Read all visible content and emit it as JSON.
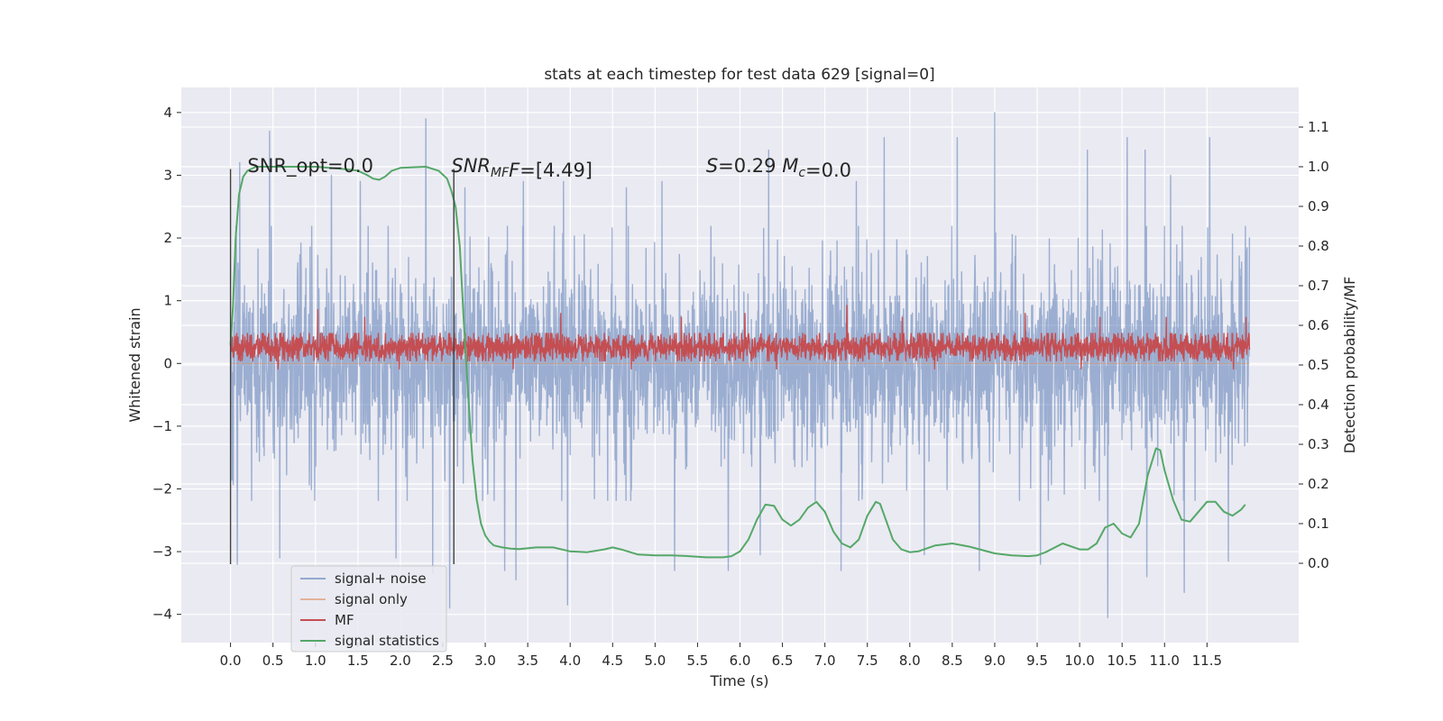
{
  "chart_data": {
    "type": "line",
    "title": "stats at each timestep for test data 629 [signal=0]",
    "xlabel": "Time (s)",
    "ylabel_left": "Whitened strain",
    "ylabel_right": "Detection probability/MF",
    "xlim": [
      -0.58,
      12.58
    ],
    "ylim_left": [
      -4.45,
      4.4
    ],
    "ylim_right": [
      -0.2,
      1.2
    ],
    "x_ticks": [
      0.0,
      0.5,
      1.0,
      1.5,
      2.0,
      2.5,
      3.0,
      3.5,
      4.0,
      4.5,
      5.0,
      5.5,
      6.0,
      6.5,
      7.0,
      7.5,
      8.0,
      8.5,
      9.0,
      9.5,
      10.0,
      10.5,
      11.0,
      11.5
    ],
    "x_tick_labels": [
      "0.0",
      "0.5",
      "1.0",
      "1.5",
      "2.0",
      "2.5",
      "3.0",
      "3.5",
      "4.0",
      "4.5",
      "5.0",
      "5.5",
      "6.0",
      "6.5",
      "7.0",
      "7.5",
      "8.0",
      "8.5",
      "9.0",
      "9.5",
      "10.0",
      "10.5",
      "11.0",
      "11.5"
    ],
    "y_left_ticks": [
      -4,
      -3,
      -2,
      -1,
      0,
      1,
      2,
      3,
      4
    ],
    "y_left_tick_labels": [
      "−4",
      "−3",
      "−2",
      "−1",
      "0",
      "1",
      "2",
      "3",
      "4"
    ],
    "y_right_ticks": [
      0.0,
      0.1,
      0.2,
      0.3,
      0.4,
      0.5,
      0.6,
      0.7,
      0.8,
      0.9,
      1.0,
      1.1
    ],
    "y_right_tick_labels": [
      "0.0",
      "0.1",
      "0.2",
      "0.3",
      "0.4",
      "0.5",
      "0.6",
      "0.7",
      "0.8",
      "0.9",
      "1.0",
      "1.1"
    ],
    "grid": true,
    "legend_position": "lower-left",
    "vertical_markers": [
      {
        "x": 0.0,
        "y_range": [
          -3.2,
          3.1
        ]
      },
      {
        "x": 2.63,
        "y_range": [
          -3.2,
          3.1
        ]
      }
    ],
    "annotations": [
      {
        "text": "SNR_opt=0.0",
        "x": 0.2,
        "y": 3.05
      },
      {
        "text_parts": [
          {
            "t": "SNR",
            "i": true
          },
          {
            "t": "MF",
            "i": true,
            "sub": true
          },
          {
            "t": "F",
            "i": true
          },
          {
            "t": "=[4.49]",
            "i": false
          }
        ],
        "x": 2.6,
        "y": 3.05
      },
      {
        "text_parts": [
          {
            "t": "S",
            "i": true
          },
          {
            "t": "=0.29   ",
            "i": false
          },
          {
            "t": "M",
            "i": true
          },
          {
            "t": "c",
            "i": true,
            "sub": true
          },
          {
            "t": "=0.0",
            "i": false
          }
        ],
        "x": 5.6,
        "y": 3.05
      }
    ],
    "series": [
      {
        "name": "signal+ noise",
        "axis": "left",
        "color": "#4c72b0",
        "style": "noise-band",
        "x_range": [
          0.0,
          12.0
        ],
        "typical_envelope": [
          -1.9,
          1.9
        ],
        "peaks_up": [
          [
            0.07,
            2.0
          ],
          [
            0.11,
            3.2
          ],
          [
            0.46,
            3.7
          ],
          [
            1.19,
            3.0
          ],
          [
            1.53,
            2.9
          ],
          [
            2.3,
            3.9
          ],
          [
            2.76,
            2.8
          ],
          [
            3.45,
            2.9
          ],
          [
            3.92,
            2.9
          ],
          [
            4.66,
            2.8
          ],
          [
            5.08,
            2.9
          ],
          [
            6.34,
            3.4
          ],
          [
            7.37,
            2.9
          ],
          [
            7.7,
            3.6
          ],
          [
            8.56,
            3.6
          ],
          [
            9.0,
            4.0
          ],
          [
            10.09,
            3.4
          ],
          [
            10.56,
            3.6
          ],
          [
            10.77,
            3.4
          ],
          [
            11.07,
            3.0
          ],
          [
            11.53,
            3.6
          ],
          [
            11.96,
            1.8
          ]
        ],
        "peaks_down": [
          [
            0.02,
            -1.8
          ],
          [
            0.08,
            -3.2
          ],
          [
            0.58,
            -3.1
          ],
          [
            1.95,
            -3.1
          ],
          [
            2.38,
            -3.35
          ],
          [
            2.58,
            -3.9
          ],
          [
            3.23,
            -3.3
          ],
          [
            3.36,
            -3.45
          ],
          [
            3.97,
            -3.85
          ],
          [
            5.23,
            -3.3
          ],
          [
            5.86,
            -3.3
          ],
          [
            6.24,
            -3.05
          ],
          [
            7.19,
            -3.3
          ],
          [
            8.17,
            -3.05
          ],
          [
            8.82,
            -3.3
          ],
          [
            9.54,
            -3.2
          ],
          [
            10.33,
            -4.05
          ],
          [
            10.79,
            -3.4
          ],
          [
            11.23,
            -3.65
          ],
          [
            11.75,
            -3.15
          ],
          [
            11.96,
            -1.8
          ]
        ]
      },
      {
        "name": "signal only",
        "axis": "left",
        "color": "#dd8452",
        "style": "flat",
        "x": [
          0.0,
          12.0
        ],
        "y": [
          0.0,
          0.0
        ]
      },
      {
        "name": "MF",
        "axis": "right",
        "color": "#c44e52",
        "style": "noise-band",
        "x_range": [
          0.0,
          12.0
        ],
        "typical_band": [
          0.515,
          0.575
        ],
        "peaks_up": [
          [
            0.02,
            0.57
          ],
          [
            1.03,
            0.64
          ],
          [
            1.58,
            0.62
          ],
          [
            3.89,
            0.63
          ],
          [
            5.31,
            0.62
          ],
          [
            6.06,
            0.63
          ],
          [
            7.26,
            0.65
          ],
          [
            7.91,
            0.62
          ],
          [
            9.36,
            0.63
          ],
          [
            10.24,
            0.62
          ],
          [
            11.02,
            0.62
          ],
          [
            11.96,
            0.62
          ]
        ],
        "peaks_down": [
          [
            0.56,
            0.49
          ],
          [
            1.99,
            0.49
          ],
          [
            3.33,
            0.49
          ],
          [
            4.72,
            0.49
          ],
          [
            6.43,
            0.49
          ],
          [
            8.29,
            0.49
          ],
          [
            10.02,
            0.49
          ],
          [
            11.81,
            0.49
          ]
        ]
      },
      {
        "name": "signal statistics",
        "axis": "right",
        "color": "#55a868",
        "style": "line",
        "x": [
          0.0,
          0.03,
          0.06,
          0.1,
          0.15,
          0.2,
          0.3,
          0.5,
          1.0,
          1.3,
          1.5,
          1.6,
          1.68,
          1.75,
          1.82,
          1.9,
          2.0,
          2.3,
          2.45,
          2.55,
          2.6,
          2.65,
          2.7,
          2.75,
          2.8,
          2.85,
          2.9,
          2.95,
          3.0,
          3.05,
          3.1,
          3.2,
          3.3,
          3.4,
          3.6,
          3.8,
          4.0,
          4.2,
          4.4,
          4.5,
          4.6,
          4.8,
          5.0,
          5.2,
          5.4,
          5.6,
          5.8,
          5.9,
          6.0,
          6.1,
          6.2,
          6.3,
          6.4,
          6.5,
          6.6,
          6.7,
          6.8,
          6.9,
          7.0,
          7.1,
          7.2,
          7.3,
          7.4,
          7.5,
          7.6,
          7.65,
          7.7,
          7.8,
          7.9,
          8.0,
          8.1,
          8.3,
          8.5,
          8.7,
          9.0,
          9.2,
          9.4,
          9.5,
          9.6,
          9.8,
          10.0,
          10.1,
          10.2,
          10.3,
          10.4,
          10.5,
          10.6,
          10.7,
          10.8,
          10.9,
          10.95,
          11.0,
          11.1,
          11.2,
          11.3,
          11.4,
          11.5,
          11.6,
          11.7,
          11.8,
          11.9,
          11.95
        ],
        "y": [
          0.55,
          0.65,
          0.82,
          0.93,
          0.975,
          0.99,
          1.0,
          1.0,
          1.0,
          0.995,
          0.99,
          0.98,
          0.97,
          0.967,
          0.975,
          0.99,
          0.997,
          1.0,
          0.99,
          0.97,
          0.94,
          0.9,
          0.8,
          0.6,
          0.42,
          0.26,
          0.16,
          0.1,
          0.07,
          0.055,
          0.045,
          0.04,
          0.037,
          0.036,
          0.04,
          0.04,
          0.03,
          0.028,
          0.035,
          0.04,
          0.035,
          0.022,
          0.02,
          0.02,
          0.018,
          0.015,
          0.015,
          0.018,
          0.03,
          0.06,
          0.11,
          0.148,
          0.145,
          0.11,
          0.095,
          0.11,
          0.14,
          0.155,
          0.13,
          0.08,
          0.05,
          0.04,
          0.06,
          0.12,
          0.155,
          0.15,
          0.12,
          0.06,
          0.035,
          0.028,
          0.03,
          0.045,
          0.05,
          0.042,
          0.025,
          0.02,
          0.018,
          0.02,
          0.028,
          0.05,
          0.035,
          0.035,
          0.05,
          0.09,
          0.1,
          0.075,
          0.065,
          0.1,
          0.22,
          0.29,
          0.285,
          0.235,
          0.16,
          0.11,
          0.105,
          0.13,
          0.155,
          0.155,
          0.13,
          0.12,
          0.135,
          0.148
        ]
      }
    ]
  }
}
